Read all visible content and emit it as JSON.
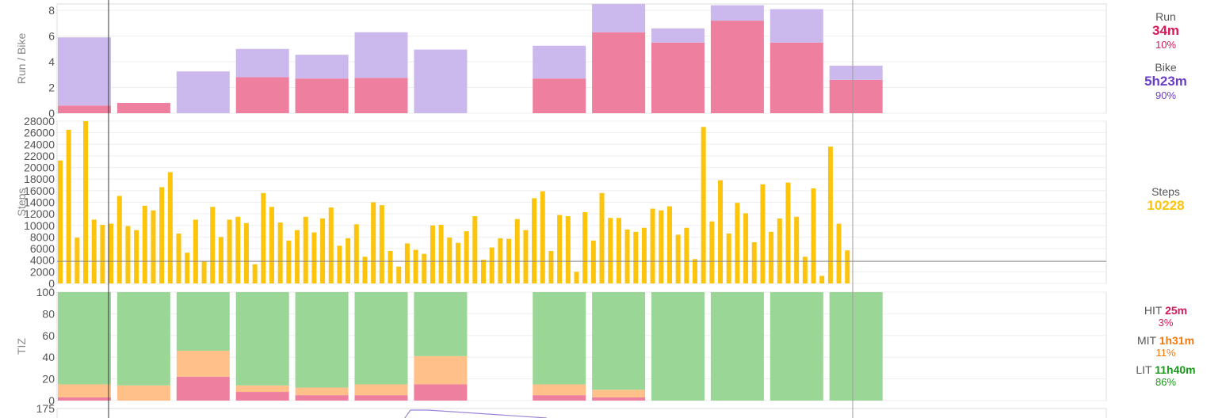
{
  "chart_data": [
    {
      "type": "bar",
      "stacked": true,
      "ylabel": "Run / Bike",
      "ylim": [
        0,
        8.5
      ],
      "yticks": [
        0,
        2,
        4,
        6,
        8
      ],
      "grid": true,
      "series": [
        {
          "name": "Run",
          "color": "#ee7f9f",
          "values": [
            0.6,
            0.8,
            0,
            2.8,
            2.7,
            2.75,
            0,
            null,
            2.7,
            6.3,
            5.5,
            7.2,
            5.5,
            2.6
          ]
        },
        {
          "name": "Bike",
          "color": "#cbb9ed",
          "values": [
            5.3,
            0,
            3.25,
            2.2,
            1.85,
            3.55,
            4.95,
            null,
            2.55,
            2.2,
            1.1,
            1.2,
            2.6,
            1.1
          ]
        }
      ]
    },
    {
      "type": "bar",
      "ylabel": "Steps",
      "ylim": [
        0,
        28000
      ],
      "yticks": [
        0,
        2000,
        4000,
        6000,
        8000,
        10000,
        12000,
        14000,
        16000,
        18000,
        20000,
        22000,
        24000,
        26000,
        28000
      ],
      "grid": true,
      "reference_line": 3800,
      "series": [
        {
          "name": "Steps",
          "color": "#fcc40c",
          "values": [
            21200,
            26500,
            7900,
            28000,
            11000,
            10100,
            10300,
            15100,
            9900,
            9200,
            13400,
            12600,
            16600,
            19200,
            8600,
            5300,
            11000,
            3800,
            13200,
            8000,
            11000,
            11500,
            10400,
            3300,
            15600,
            13200,
            10500,
            7400,
            9200,
            11500,
            8800,
            11200,
            13100,
            6500,
            7800,
            10200,
            4600,
            14000,
            13500,
            5600,
            2900,
            6900,
            5800,
            5100,
            10000,
            10100,
            7900,
            7000,
            9000,
            11600,
            4100,
            6200,
            7800,
            7700,
            11100,
            9200,
            14700,
            15900,
            5600,
            11800,
            11600,
            2000,
            12300,
            7400,
            15600,
            11300,
            11300,
            9300,
            8900,
            9600,
            12900,
            12600,
            13300,
            8400,
            9600,
            4200,
            27000,
            10700,
            17800,
            8600,
            13900,
            12100,
            7100,
            17100,
            8900,
            11200,
            17400,
            11500,
            4600,
            16400,
            1300,
            23600,
            10300,
            5700
          ]
        }
      ]
    },
    {
      "type": "bar",
      "stacked": true,
      "ylabel": "TIZ",
      "ylim": [
        0,
        100
      ],
      "yticks": [
        0,
        20,
        40,
        60,
        80,
        100
      ],
      "grid": true,
      "series": [
        {
          "name": "HIT",
          "color": "#ef7f9f",
          "values": [
            3,
            0,
            22,
            8,
            5,
            5,
            15,
            null,
            5,
            3,
            0,
            0,
            0,
            0
          ]
        },
        {
          "name": "MIT",
          "color": "#ffc08a",
          "values": [
            12,
            14,
            24,
            6,
            7,
            10,
            26,
            null,
            10,
            7,
            0,
            0,
            0,
            0
          ]
        },
        {
          "name": "LIT",
          "color": "#9ad696",
          "values": [
            85,
            86,
            54,
            86,
            88,
            85,
            59,
            null,
            85,
            90,
            100,
            100,
            100,
            100
          ]
        }
      ]
    },
    {
      "type": "line",
      "yticks": [
        175
      ],
      "series": [
        {
          "color": "#9b86d6",
          "values": [
            175,
            168,
            160
          ]
        }
      ]
    }
  ],
  "summary": {
    "run": {
      "label": "Run",
      "value": "34m",
      "pct": "10%",
      "color": "#d6195a"
    },
    "bike": {
      "label": "Bike",
      "value": "5h23m",
      "pct": "90%",
      "color": "#6a3fc8"
    },
    "steps": {
      "label": "Steps",
      "value": "10228",
      "color": "#fcc40c"
    },
    "hit": {
      "label": "HIT",
      "value": "25m",
      "pct": "3%",
      "color": "#d6195a"
    },
    "mit": {
      "label": "MIT",
      "value": "1h31m",
      "pct": "11%",
      "color": "#f27a10"
    },
    "lit": {
      "label": "LIT",
      "value": "11h40m",
      "pct": "86%",
      "color": "#1a9a1a"
    }
  }
}
